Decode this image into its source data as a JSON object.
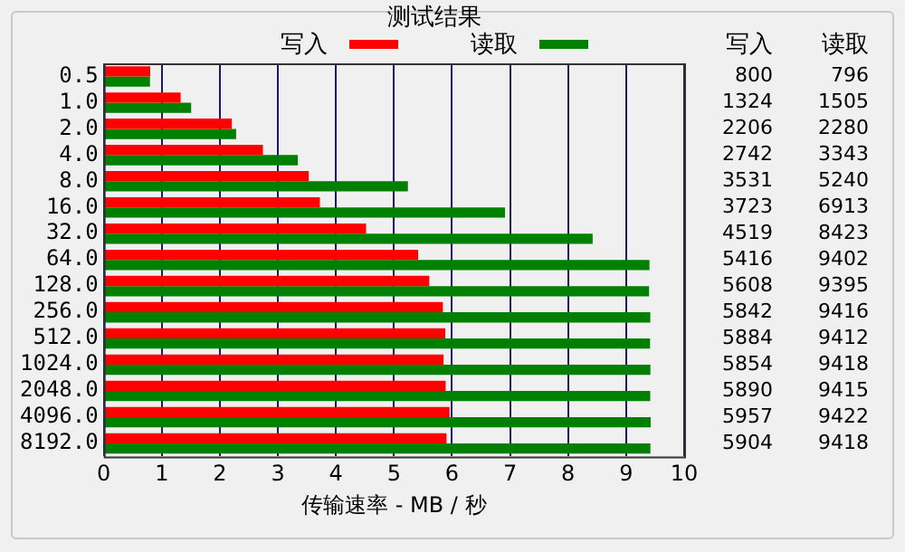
{
  "chart_data": {
    "type": "bar",
    "orientation": "horizontal",
    "title": "测试结果",
    "xlabel": "传输速率 - MB / 秒",
    "categories": [
      "0.5",
      "1.0",
      "2.0",
      "4.0",
      "8.0",
      "16.0",
      "32.0",
      "64.0",
      "128.0",
      "256.0",
      "512.0",
      "1024.0",
      "2048.0",
      "4096.0",
      "8192.0"
    ],
    "series": [
      {
        "name": "写入",
        "color": "#ff0000",
        "values": [
          0.8,
          1.324,
          2.206,
          2.742,
          3.531,
          3.723,
          4.519,
          5.416,
          5.608,
          5.842,
          5.884,
          5.854,
          5.89,
          5.957,
          5.904
        ]
      },
      {
        "name": "读取",
        "color": "#008000",
        "values": [
          0.796,
          1.505,
          2.28,
          3.343,
          5.24,
          6.913,
          8.423,
          9.402,
          9.395,
          9.416,
          9.412,
          9.418,
          9.415,
          9.422,
          9.418
        ]
      }
    ],
    "annotations": [
      "800",
      "796",
      "1324",
      "1505",
      "2206",
      "2280",
      "2742",
      "3343",
      "3531",
      "5240",
      "3723",
      "6913",
      "4519",
      "8423",
      "5416",
      "9402",
      "5608",
      "9395",
      "5842",
      "9416",
      "5884",
      "9412",
      "5854",
      "9418",
      "5890",
      "9415",
      "5957",
      "9422",
      "5904",
      "9418"
    ],
    "xlim": [
      0,
      10
    ],
    "xticks": [
      0,
      1,
      2,
      3,
      4,
      5,
      6,
      7,
      8,
      9,
      10
    ],
    "grid": "x",
    "legend": "top"
  }
}
